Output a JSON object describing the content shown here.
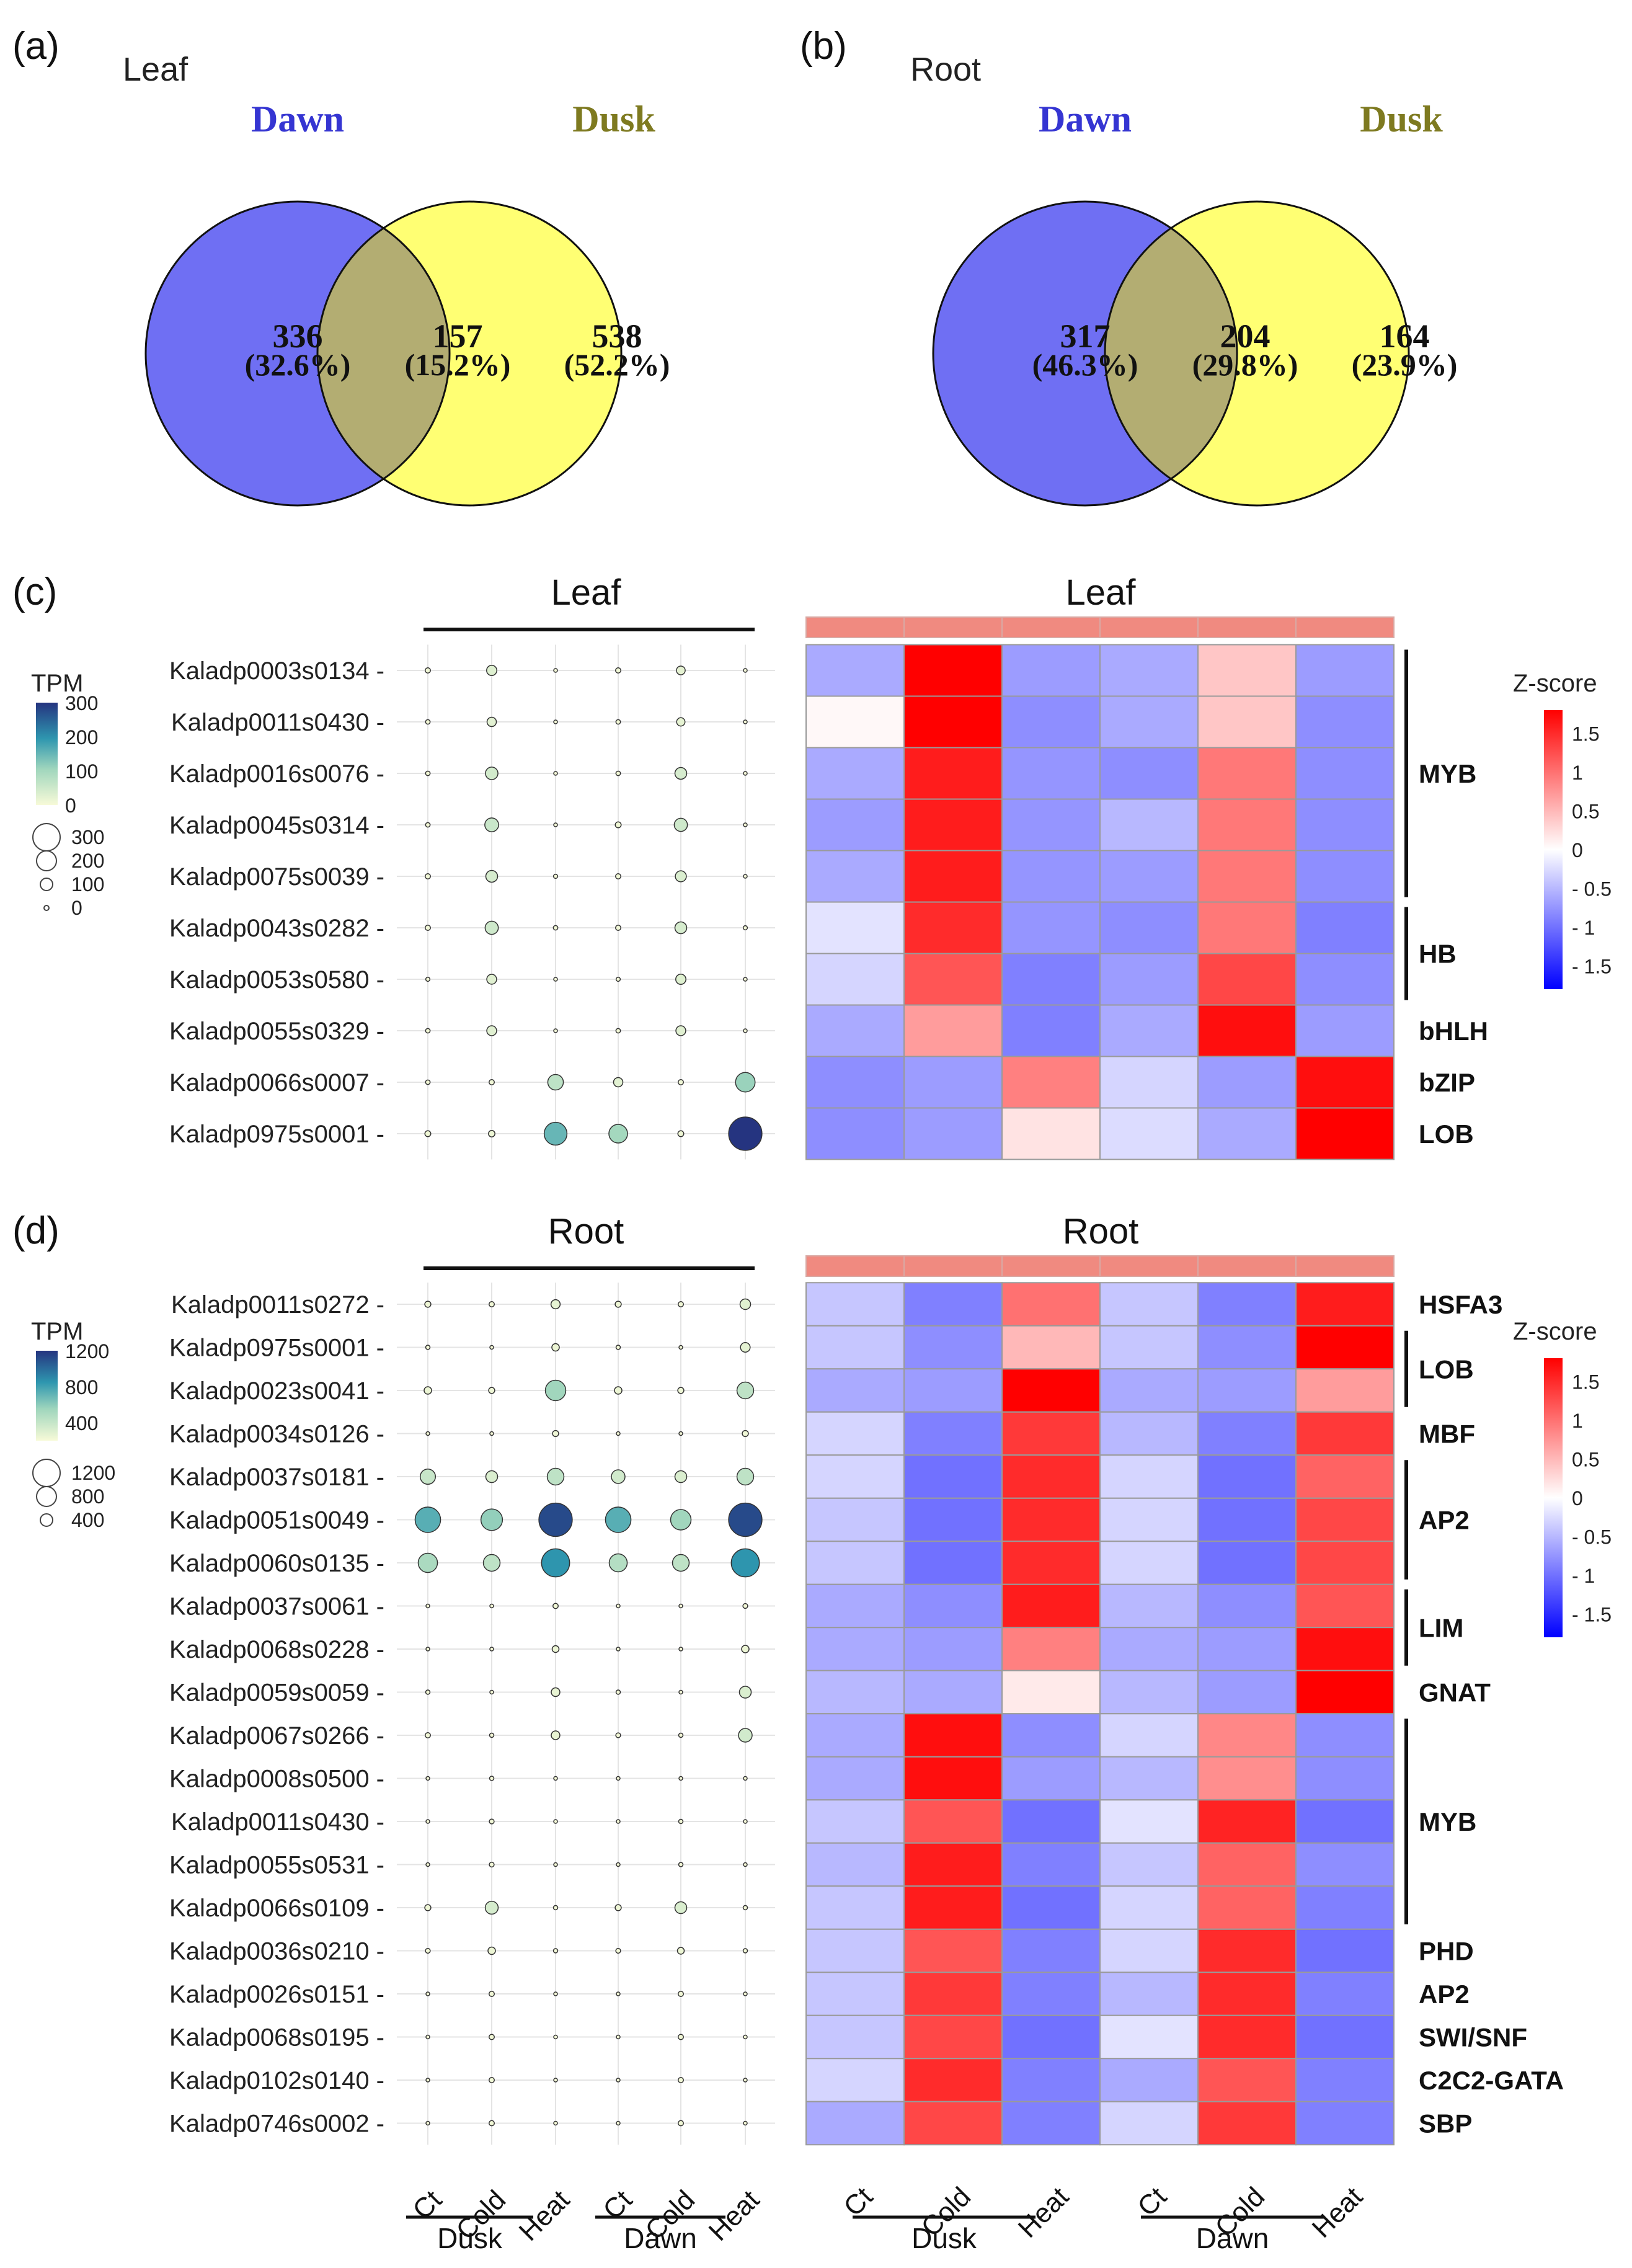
{
  "chart_data": [
    {
      "type": "venn",
      "panel": "(a)",
      "subtitle": "Leaf",
      "sets": [
        {
          "name": "Dawn",
          "color": "#6f6ff3",
          "label_color": "#3535d2"
        },
        {
          "name": "Dusk",
          "color": "#ffff73",
          "label_color": "#7e7a20"
        }
      ],
      "overlap_color": "#b3ad72",
      "regions": [
        {
          "count": "336",
          "pct": "(32.6%)"
        },
        {
          "count": "157",
          "pct": "(15.2%)"
        },
        {
          "count": "538",
          "pct": "(52.2%)"
        }
      ]
    },
    {
      "type": "venn",
      "panel": "(b)",
      "subtitle": "Root",
      "sets": [
        {
          "name": "Dawn",
          "color": "#6f6ff3",
          "label_color": "#3535d2"
        },
        {
          "name": "Dusk",
          "color": "#ffff73",
          "label_color": "#7e7a20"
        }
      ],
      "overlap_color": "#b3ad72",
      "regions": [
        {
          "count": "317",
          "pct": "(46.3%)"
        },
        {
          "count": "204",
          "pct": "(29.8%)"
        },
        {
          "count": "164",
          "pct": "(23.9%)"
        }
      ]
    },
    {
      "type": "heatmap",
      "panel": "(c)",
      "dot_title": "Leaf",
      "heat_title": "Leaf",
      "columns": [
        "Ct",
        "Cold",
        "Heat",
        "Ct",
        "Cold",
        "Heat"
      ],
      "groups": [
        {
          "name": "Dusk",
          "span": [
            0,
            2
          ]
        },
        {
          "name": "Dawn",
          "span": [
            3,
            5
          ]
        }
      ],
      "genes": [
        "Kaladp0003s0134",
        "Kaladp0011s0430",
        "Kaladp0016s0076",
        "Kaladp0045s0314",
        "Kaladp0075s0039",
        "Kaladp0043s0282",
        "Kaladp0053s0580",
        "Kaladp0055s0329",
        "Kaladp0066s0007",
        "Kaladp0975s0001"
      ],
      "tpm": [
        [
          8,
          30,
          4,
          8,
          22,
          4
        ],
        [
          6,
          25,
          4,
          6,
          20,
          3
        ],
        [
          6,
          45,
          3,
          6,
          40,
          3
        ],
        [
          6,
          55,
          4,
          10,
          50,
          3
        ],
        [
          8,
          40,
          5,
          8,
          35,
          4
        ],
        [
          8,
          50,
          6,
          8,
          40,
          5
        ],
        [
          5,
          28,
          4,
          5,
          30,
          4
        ],
        [
          6,
          28,
          4,
          6,
          28,
          4
        ],
        [
          6,
          8,
          70,
          25,
          8,
          110
        ],
        [
          10,
          12,
          150,
          100,
          10,
          320
        ]
      ],
      "zscore": [
        [
          -0.6,
          1.9,
          -0.7,
          -0.6,
          0.4,
          -0.7
        ],
        [
          0.05,
          1.8,
          -0.8,
          -0.6,
          0.4,
          -0.8
        ],
        [
          -0.6,
          1.6,
          -0.75,
          -0.8,
          0.95,
          -0.8
        ],
        [
          -0.7,
          1.6,
          -0.75,
          -0.5,
          0.95,
          -0.8
        ],
        [
          -0.6,
          1.6,
          -0.75,
          -0.7,
          0.95,
          -0.8
        ],
        [
          -0.2,
          1.5,
          -0.75,
          -0.8,
          0.95,
          -0.9
        ],
        [
          -0.3,
          1.2,
          -0.9,
          -0.7,
          1.3,
          -0.8
        ],
        [
          -0.6,
          0.7,
          -0.9,
          -0.6,
          1.7,
          -0.7
        ],
        [
          -0.8,
          -0.7,
          0.9,
          -0.3,
          -0.7,
          1.7
        ],
        [
          -0.8,
          -0.7,
          0.2,
          -0.25,
          -0.6,
          1.9
        ]
      ],
      "families": [
        {
          "name": "MYB",
          "rows": [
            0,
            4
          ],
          "bar": true
        },
        {
          "name": "HB",
          "rows": [
            5,
            6
          ],
          "bar": true
        },
        {
          "name": "bHLH",
          "rows": [
            7,
            7
          ],
          "bar": false
        },
        {
          "name": "bZIP",
          "rows": [
            8,
            8
          ],
          "bar": false
        },
        {
          "name": "LOB",
          "rows": [
            9,
            9
          ],
          "bar": false
        }
      ],
      "tpm_legend": {
        "title": "TPM",
        "color_ticks": [
          "300",
          "200",
          "100",
          "0"
        ],
        "size_ticks": [
          "300",
          "200",
          "100",
          "0"
        ],
        "max": 300
      },
      "zscore_legend": {
        "title": "Z-score",
        "ticks": [
          "1.5",
          "1",
          "0.5",
          "0",
          "- 0.5",
          "- 1",
          "- 1.5"
        ],
        "min": -1.8,
        "max": 1.8
      }
    },
    {
      "type": "heatmap",
      "panel": "(d)",
      "dot_title": "Root",
      "heat_title": "Root",
      "columns": [
        "Ct",
        "Cold",
        "Heat",
        "Ct",
        "Cold",
        "Heat"
      ],
      "groups": [
        {
          "name": "Dusk",
          "span": [
            0,
            2
          ]
        },
        {
          "name": "Dawn",
          "span": [
            3,
            5
          ]
        }
      ],
      "genes": [
        "Kaladp0011s0272",
        "Kaladp0975s0001",
        "Kaladp0023s0041",
        "Kaladp0034s0126",
        "Kaladp0037s0181",
        "Kaladp0051s0049",
        "Kaladp0060s0135",
        "Kaladp0037s0061",
        "Kaladp0068s0228",
        "Kaladp0059s0059",
        "Kaladp0067s0266",
        "Kaladp0008s0500",
        "Kaladp0011s0430",
        "Kaladp0055s0531",
        "Kaladp0066s0109",
        "Kaladp0036s0210",
        "Kaladp0026s0151",
        "Kaladp0068s0195",
        "Kaladp0102s0140",
        "Kaladp0746s0002"
      ],
      "tpm": [
        [
          40,
          30,
          90,
          40,
          30,
          120
        ],
        [
          20,
          15,
          60,
          20,
          15,
          100
        ],
        [
          60,
          40,
          450,
          60,
          40,
          300
        ],
        [
          15,
          10,
          40,
          15,
          10,
          40
        ],
        [
          250,
          150,
          300,
          200,
          150,
          300
        ],
        [
          700,
          500,
          1200,
          700,
          450,
          1200
        ],
        [
          400,
          300,
          850,
          350,
          300,
          850
        ],
        [
          10,
          8,
          30,
          10,
          8,
          25
        ],
        [
          15,
          10,
          50,
          15,
          10,
          60
        ],
        [
          20,
          15,
          80,
          20,
          15,
          150
        ],
        [
          30,
          20,
          80,
          25,
          20,
          200
        ],
        [
          15,
          20,
          15,
          10,
          15,
          12
        ],
        [
          15,
          25,
          15,
          15,
          20,
          10
        ],
        [
          15,
          25,
          15,
          15,
          20,
          10
        ],
        [
          40,
          180,
          20,
          40,
          150,
          20
        ],
        [
          25,
          60,
          20,
          25,
          50,
          20
        ],
        [
          15,
          30,
          10,
          15,
          30,
          10
        ],
        [
          15,
          30,
          10,
          15,
          30,
          10
        ],
        [
          15,
          30,
          10,
          15,
          30,
          10
        ],
        [
          15,
          30,
          10,
          15,
          30,
          10
        ]
      ],
      "zscore": [
        [
          -0.4,
          -0.9,
          1.0,
          -0.4,
          -0.9,
          1.6
        ],
        [
          -0.4,
          -0.8,
          0.5,
          -0.4,
          -0.8,
          1.9
        ],
        [
          -0.6,
          -0.7,
          1.9,
          -0.6,
          -0.7,
          0.7
        ],
        [
          -0.3,
          -0.9,
          1.4,
          -0.5,
          -0.9,
          1.4
        ],
        [
          -0.3,
          -1.0,
          1.5,
          -0.3,
          -1.0,
          1.1
        ],
        [
          -0.4,
          -1.0,
          1.5,
          -0.3,
          -1.0,
          1.3
        ],
        [
          -0.4,
          -1.0,
          1.5,
          -0.3,
          -1.0,
          1.3
        ],
        [
          -0.6,
          -0.8,
          1.6,
          -0.5,
          -0.8,
          1.2
        ],
        [
          -0.6,
          -0.7,
          0.9,
          -0.6,
          -0.7,
          1.7
        ],
        [
          -0.5,
          -0.6,
          0.15,
          -0.5,
          -0.7,
          1.9
        ],
        [
          -0.6,
          1.7,
          -0.8,
          -0.3,
          0.85,
          -0.8
        ],
        [
          -0.6,
          1.7,
          -0.7,
          -0.5,
          0.8,
          -0.8
        ],
        [
          -0.4,
          1.2,
          -1.0,
          -0.2,
          1.55,
          -1.0
        ],
        [
          -0.5,
          1.6,
          -0.9,
          -0.4,
          1.1,
          -0.8
        ],
        [
          -0.4,
          1.6,
          -1.0,
          -0.3,
          1.1,
          -0.9
        ],
        [
          -0.4,
          1.2,
          -0.9,
          -0.3,
          1.5,
          -1.0
        ],
        [
          -0.4,
          1.4,
          -0.9,
          -0.5,
          1.5,
          -0.9
        ],
        [
          -0.4,
          1.3,
          -1.0,
          -0.2,
          1.5,
          -1.0
        ],
        [
          -0.3,
          1.5,
          -0.9,
          -0.6,
          1.2,
          -0.9
        ],
        [
          -0.6,
          1.3,
          -0.9,
          -0.3,
          1.4,
          -0.9
        ]
      ],
      "families": [
        {
          "name": "HSFA3",
          "rows": [
            0,
            0
          ],
          "bar": false
        },
        {
          "name": "LOB",
          "rows": [
            1,
            2
          ],
          "bar": true
        },
        {
          "name": "MBF",
          "rows": [
            3,
            3
          ],
          "bar": false
        },
        {
          "name": "AP2",
          "rows": [
            4,
            6
          ],
          "bar": true
        },
        {
          "name": "LIM",
          "rows": [
            7,
            8
          ],
          "bar": true
        },
        {
          "name": "GNAT",
          "rows": [
            9,
            9
          ],
          "bar": false
        },
        {
          "name": "MYB",
          "rows": [
            10,
            14
          ],
          "bar": true
        },
        {
          "name": "PHD",
          "rows": [
            15,
            15
          ],
          "bar": false
        },
        {
          "name": "AP2",
          "rows": [
            16,
            16
          ],
          "bar": false
        },
        {
          "name": "SWI/SNF",
          "rows": [
            17,
            17
          ],
          "bar": false
        },
        {
          "name": "C2C2-GATA",
          "rows": [
            18,
            18
          ],
          "bar": false
        },
        {
          "name": "SBP",
          "rows": [
            19,
            19
          ],
          "bar": false
        }
      ],
      "tpm_legend": {
        "title": "TPM",
        "color_ticks": [
          "1200",
          "800",
          "400"
        ],
        "size_ticks": [
          "1200",
          "800",
          "400"
        ],
        "max": 1300
      },
      "zscore_legend": {
        "title": "Z-score",
        "ticks": [
          "1.5",
          "1",
          "0.5",
          "0",
          "- 0.5",
          "- 1",
          "- 1.5"
        ],
        "min": -1.8,
        "max": 1.8
      }
    }
  ]
}
